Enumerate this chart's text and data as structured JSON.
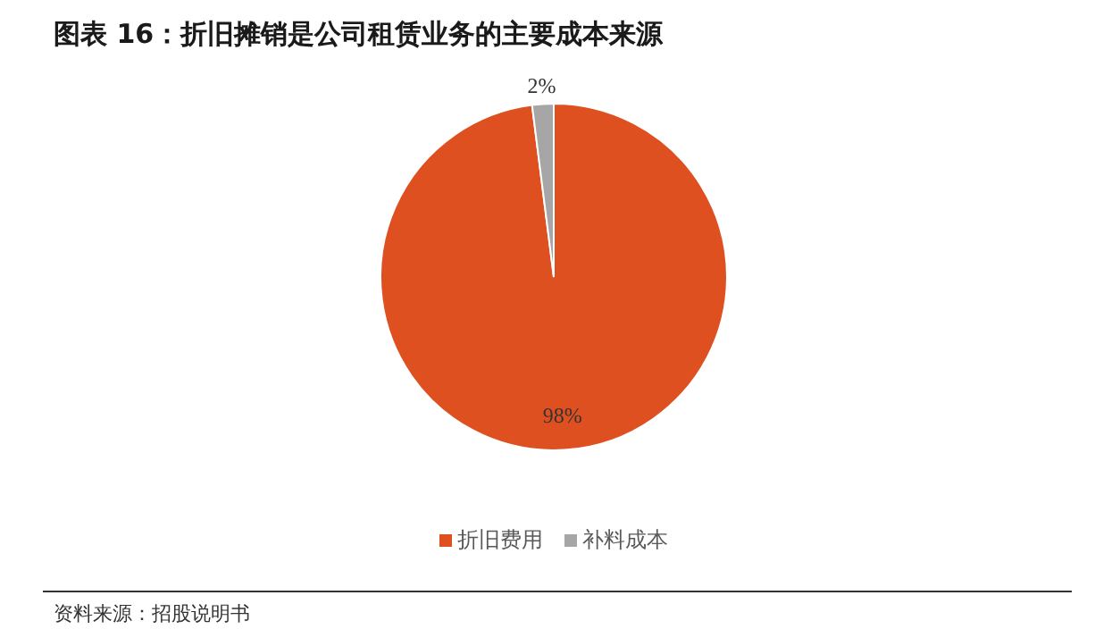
{
  "chart_data": {
    "type": "pie",
    "title": "图表 16：折旧摊销是公司租赁业务的主要成本来源",
    "categories": [
      "折旧费用",
      "补料成本"
    ],
    "values": [
      98,
      2
    ],
    "colors": [
      "#df5020",
      "#a6a6a6"
    ],
    "value_labels": [
      "98%",
      "2%"
    ],
    "legend": "bottom",
    "annotations": [
      "资料来源：招股说明书"
    ]
  }
}
